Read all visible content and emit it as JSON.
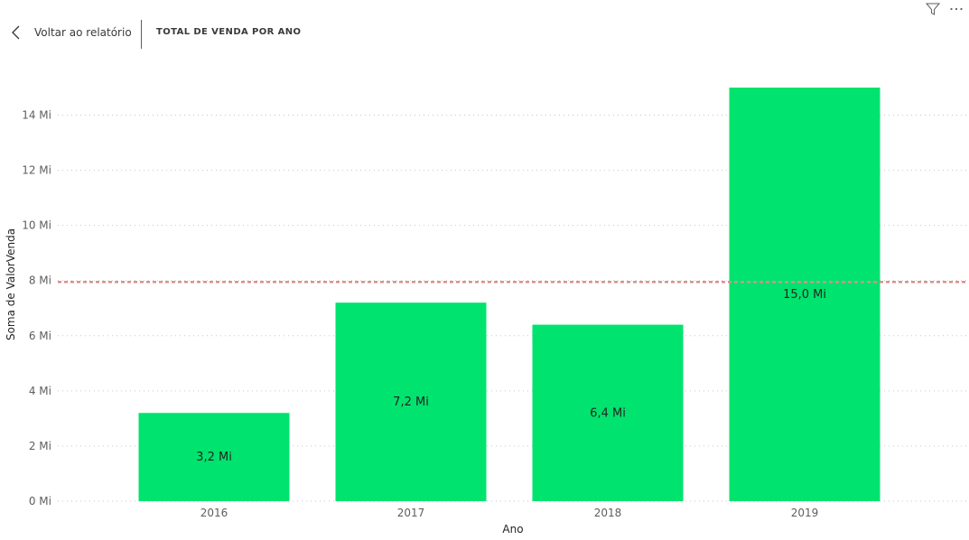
{
  "header": {
    "back_label": "Voltar ao relatório",
    "title": "TOTAL DE VENDA POR ANO"
  },
  "icons": {
    "back": "chevron-left-icon",
    "filter": "filter-icon",
    "more": "more-options-icon"
  },
  "colors": {
    "bar": "#00e36e",
    "reference_line": "#d9908e",
    "gridline": "#c8c6c4"
  },
  "chart_data": {
    "type": "bar",
    "title": "TOTAL DE VENDA POR ANO",
    "xlabel": "Ano",
    "ylabel": "Soma de ValorVenda",
    "categories": [
      "2016",
      "2017",
      "2018",
      "2019"
    ],
    "values": [
      3.2,
      7.2,
      6.4,
      15.0
    ],
    "data_labels": [
      "3,2 Mi",
      "7,2 Mi",
      "6,4 Mi",
      "15,0 Mi"
    ],
    "unit": "Mi",
    "ylim": [
      0,
      15
    ],
    "yticks": [
      0,
      2,
      4,
      6,
      8,
      10,
      12,
      14
    ],
    "ytick_labels": [
      "0 Mi",
      "2 Mi",
      "4 Mi",
      "6 Mi",
      "8 Mi",
      "10 Mi",
      "12 Mi",
      "14 Mi"
    ],
    "reference_line": 7.95,
    "grid": true,
    "legend": "none"
  }
}
